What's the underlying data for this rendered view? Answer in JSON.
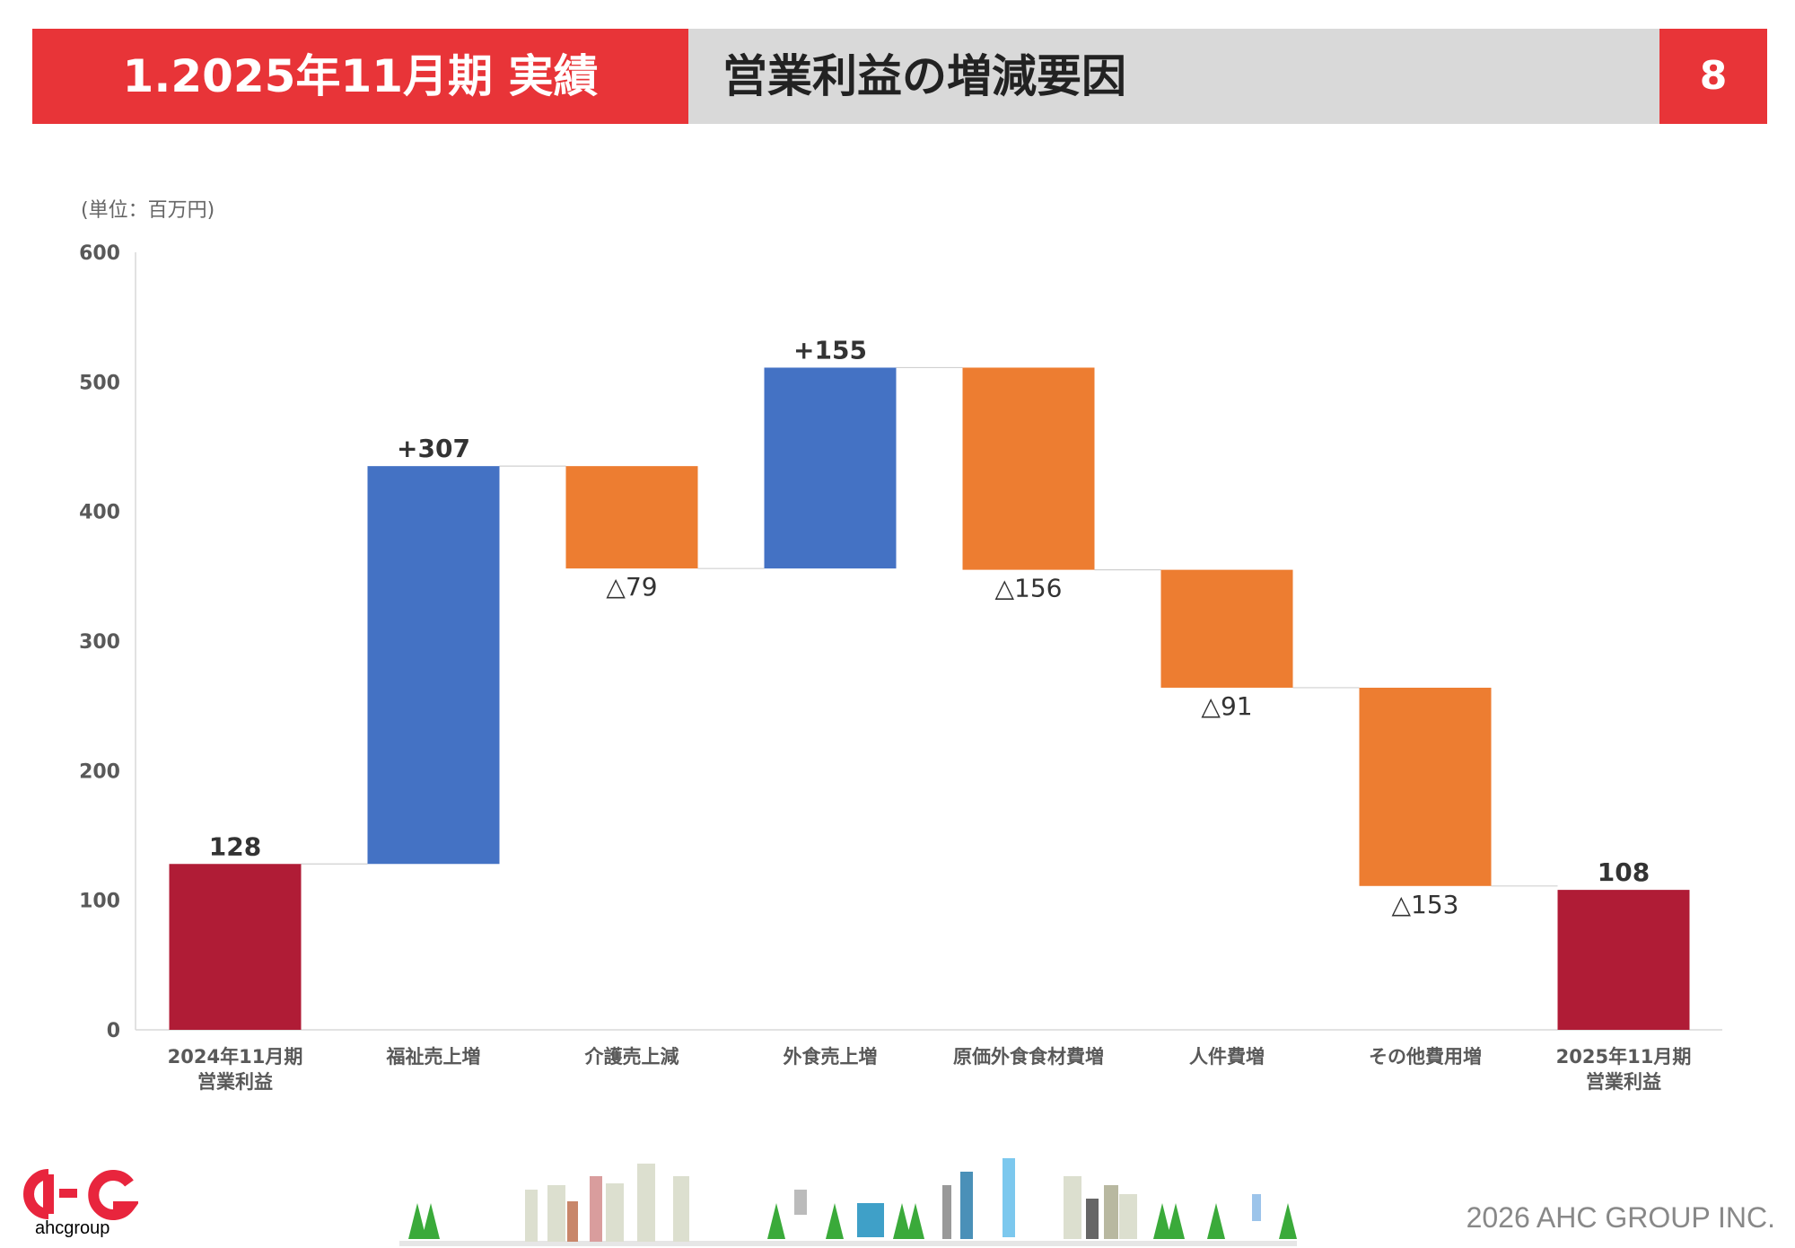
{
  "header": {
    "section": "1.2025年11月期 実績",
    "title": "営業利益の増減要因",
    "page": "8"
  },
  "footer": {
    "copyright": "2026 AHC GROUP INC.",
    "logo_text": "ahcgroup"
  },
  "colors": {
    "total": "#b01c36",
    "increase": "#4472c4",
    "decrease": "#ed7d31",
    "accent": "#e83438"
  },
  "chart_data": {
    "type": "waterfall",
    "unit_label": "(単位：百万円)",
    "ylim": [
      0,
      600
    ],
    "yticks": [
      0,
      100,
      200,
      300,
      400,
      500,
      600
    ],
    "categories": [
      "2024年11月期\n営業利益",
      "福祉売上増",
      "介護売上減",
      "外食売上増",
      "原価外食食材費増",
      "人件費増",
      "その他費用増",
      "2025年11月期\n営業利益"
    ],
    "values": [
      128,
      307,
      -79,
      155,
      -156,
      -91,
      -153,
      108
    ],
    "kinds": [
      "total",
      "increase",
      "decrease",
      "increase",
      "decrease",
      "decrease",
      "decrease",
      "total"
    ],
    "labels": [
      "128",
      "+307",
      "△79",
      "+155",
      "△156",
      "△91",
      "△153",
      "108"
    ]
  }
}
